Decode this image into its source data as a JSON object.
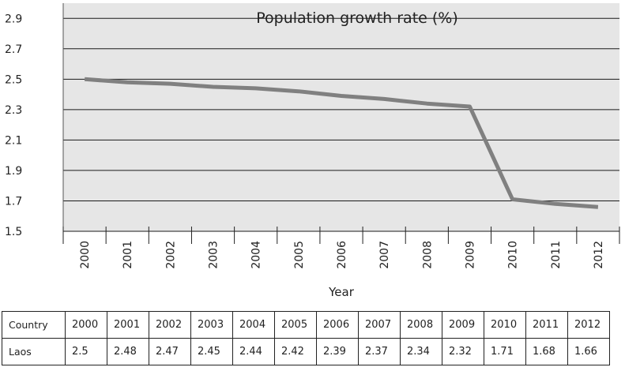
{
  "chart_data": {
    "type": "line",
    "title": "Population growth rate (%)",
    "xlabel": "Year",
    "ylabel": "",
    "x": [
      "2000",
      "2001",
      "2002",
      "2003",
      "2004",
      "2005",
      "2006",
      "2007",
      "2008",
      "2009",
      "2010",
      "2011",
      "2012"
    ],
    "series": [
      {
        "name": "Laos",
        "values": [
          2.5,
          2.48,
          2.47,
          2.45,
          2.44,
          2.42,
          2.39,
          2.37,
          2.34,
          2.32,
          1.71,
          1.68,
          1.66
        ]
      }
    ],
    "ylim": [
      1.5,
      3.0
    ],
    "yticks": [
      "1.5",
      "1.7",
      "1.9",
      "2.1",
      "2.3",
      "2.5",
      "2.7",
      "2.9"
    ],
    "grid": "horizontal",
    "legend": "none",
    "colors": {
      "line": "#808080",
      "plot_bg": "#e6e6e6",
      "grid": "#1a1a1a"
    }
  },
  "table": {
    "header_label": "Country",
    "years": [
      "2000",
      "2001",
      "2002",
      "2003",
      "2004",
      "2005",
      "2006",
      "2007",
      "2008",
      "2009",
      "2010",
      "2011",
      "2012"
    ],
    "rows": [
      {
        "label": "Laos",
        "values": [
          "2.5",
          "2.48",
          "2.47",
          "2.45",
          "2.44",
          "2.42",
          "2.39",
          "2.37",
          "2.34",
          "2.32",
          "1.71",
          "1.68",
          "1.66"
        ]
      }
    ]
  }
}
